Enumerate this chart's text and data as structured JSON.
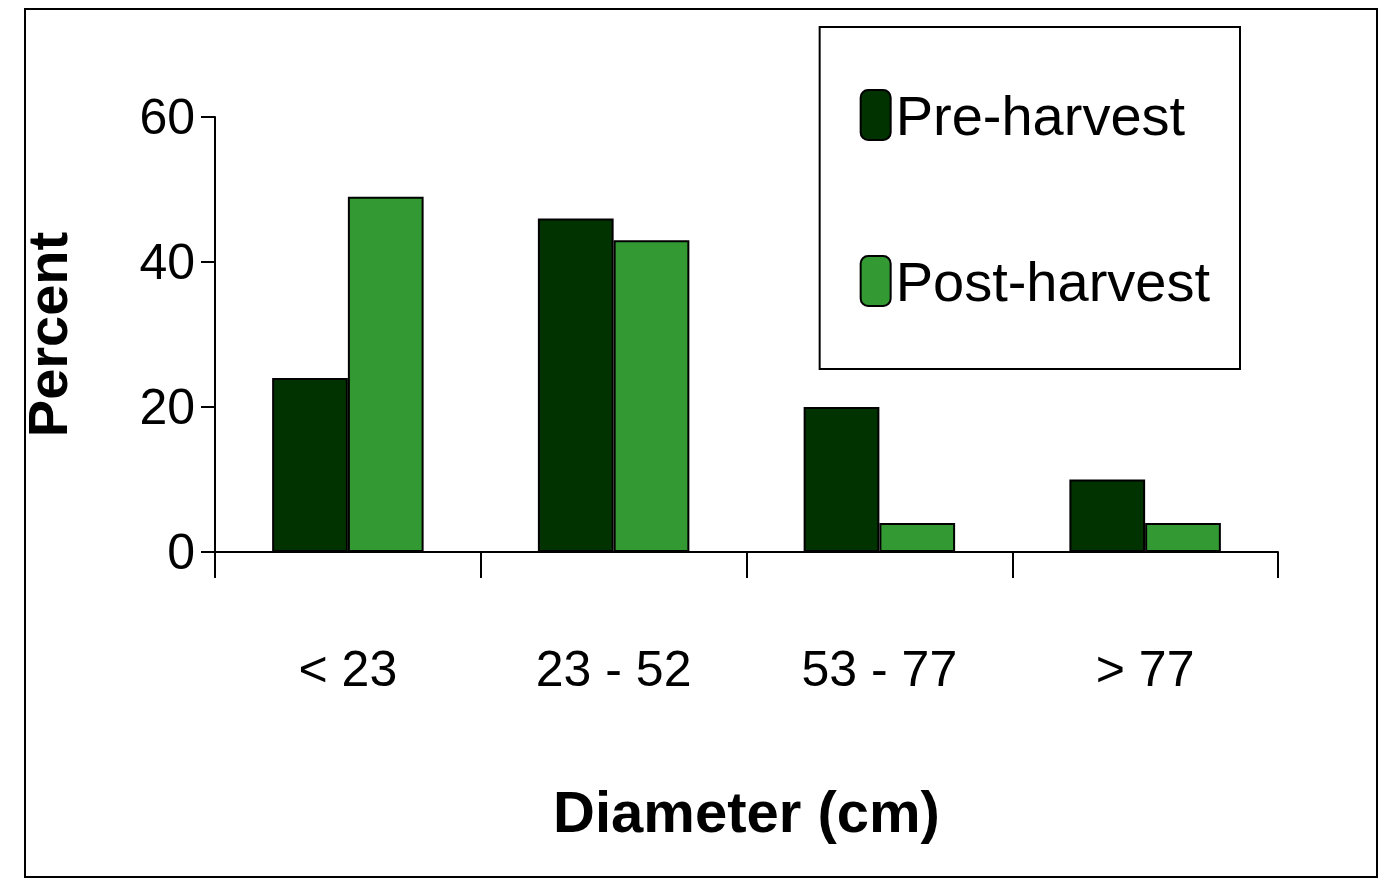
{
  "chart_data": {
    "type": "bar",
    "xlabel": "Diameter (cm)",
    "ylabel": "Percent",
    "categories": [
      "< 23",
      "23 - 52",
      "53 - 77",
      "> 77"
    ],
    "series": [
      {
        "name": "Pre-harvest",
        "color": "#003300",
        "values": [
          24,
          46,
          20,
          10
        ]
      },
      {
        "name": "Post-harvest",
        "color": "#339933",
        "values": [
          49,
          43,
          4,
          4
        ]
      }
    ],
    "ylim": [
      0,
      60
    ],
    "yticks": [
      0,
      20,
      40,
      60
    ],
    "grid": false,
    "legend": "top right"
  }
}
